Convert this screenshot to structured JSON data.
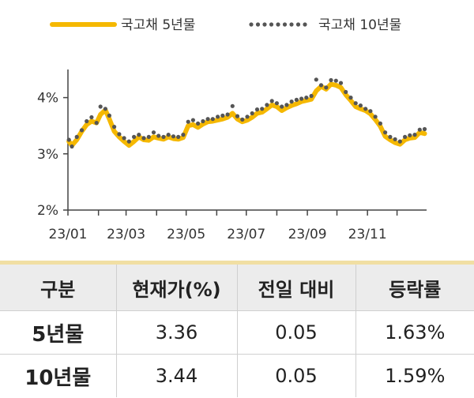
{
  "chart_data": {
    "type": "line",
    "x_tick_labels": [
      "23/01",
      "23/03",
      "23/05",
      "23/07",
      "23/09",
      "23/11"
    ],
    "y_tick_labels": [
      "2%",
      "3%",
      "4%"
    ],
    "ylim": [
      2,
      4.5
    ],
    "xlim": [
      "2023-01-01",
      "2023-12-31"
    ],
    "grid": false,
    "legend_position": "top",
    "series": [
      {
        "name": "국고채 5년물",
        "color": "#f5b800",
        "style": "solid",
        "x": [
          "2023-01-02",
          "2023-01-05",
          "2023-01-10",
          "2023-01-15",
          "2023-01-20",
          "2023-01-25",
          "2023-01-30",
          "2023-02-03",
          "2023-02-08",
          "2023-02-12",
          "2023-02-17",
          "2023-02-22",
          "2023-02-27",
          "2023-03-04",
          "2023-03-09",
          "2023-03-14",
          "2023-03-19",
          "2023-03-24",
          "2023-03-29",
          "2023-04-03",
          "2023-04-08",
          "2023-04-13",
          "2023-04-18",
          "2023-04-23",
          "2023-04-28",
          "2023-05-03",
          "2023-05-08",
          "2023-05-13",
          "2023-05-18",
          "2023-05-23",
          "2023-05-28",
          "2023-06-02",
          "2023-06-07",
          "2023-06-12",
          "2023-06-17",
          "2023-06-22",
          "2023-06-27",
          "2023-07-02",
          "2023-07-07",
          "2023-07-12",
          "2023-07-17",
          "2023-07-22",
          "2023-07-27",
          "2023-08-01",
          "2023-08-06",
          "2023-08-11",
          "2023-08-16",
          "2023-08-21",
          "2023-08-26",
          "2023-08-31",
          "2023-09-05",
          "2023-09-10",
          "2023-09-15",
          "2023-09-20",
          "2023-09-25",
          "2023-09-30",
          "2023-10-05",
          "2023-10-10",
          "2023-10-15",
          "2023-10-20",
          "2023-10-25",
          "2023-10-30",
          "2023-11-04",
          "2023-11-09",
          "2023-11-14",
          "2023-11-19",
          "2023-11-24",
          "2023-11-29",
          "2023-12-04",
          "2023-12-09",
          "2023-12-14",
          "2023-12-19",
          "2023-12-24",
          "2023-12-29"
        ],
        "values": [
          3.22,
          3.15,
          3.25,
          3.4,
          3.52,
          3.58,
          3.55,
          3.7,
          3.78,
          3.62,
          3.4,
          3.3,
          3.22,
          3.15,
          3.22,
          3.3,
          3.25,
          3.24,
          3.3,
          3.28,
          3.26,
          3.3,
          3.27,
          3.26,
          3.29,
          3.5,
          3.52,
          3.47,
          3.53,
          3.57,
          3.58,
          3.6,
          3.62,
          3.65,
          3.72,
          3.62,
          3.57,
          3.6,
          3.65,
          3.72,
          3.74,
          3.8,
          3.87,
          3.84,
          3.77,
          3.82,
          3.86,
          3.89,
          3.93,
          3.95,
          3.97,
          4.12,
          4.2,
          4.15,
          4.24,
          4.22,
          4.18,
          4.05,
          3.95,
          3.84,
          3.8,
          3.77,
          3.71,
          3.61,
          3.49,
          3.31,
          3.25,
          3.2,
          3.17,
          3.25,
          3.28,
          3.29,
          3.38,
          3.36
        ]
      },
      {
        "name": "국고채 10년물",
        "color": "#555555",
        "style": "dotted",
        "x": [
          "2023-01-02",
          "2023-01-05",
          "2023-01-10",
          "2023-01-15",
          "2023-01-20",
          "2023-01-25",
          "2023-01-30",
          "2023-02-03",
          "2023-02-08",
          "2023-02-12",
          "2023-02-17",
          "2023-02-22",
          "2023-02-27",
          "2023-03-04",
          "2023-03-09",
          "2023-03-14",
          "2023-03-19",
          "2023-03-24",
          "2023-03-29",
          "2023-04-03",
          "2023-04-08",
          "2023-04-13",
          "2023-04-18",
          "2023-04-23",
          "2023-04-28",
          "2023-05-03",
          "2023-05-08",
          "2023-05-13",
          "2023-05-18",
          "2023-05-23",
          "2023-05-28",
          "2023-06-02",
          "2023-06-07",
          "2023-06-12",
          "2023-06-17",
          "2023-06-22",
          "2023-06-27",
          "2023-07-02",
          "2023-07-07",
          "2023-07-12",
          "2023-07-17",
          "2023-07-22",
          "2023-07-27",
          "2023-08-01",
          "2023-08-06",
          "2023-08-11",
          "2023-08-16",
          "2023-08-21",
          "2023-08-26",
          "2023-08-31",
          "2023-09-05",
          "2023-09-10",
          "2023-09-15",
          "2023-09-20",
          "2023-09-25",
          "2023-09-30",
          "2023-10-05",
          "2023-10-10",
          "2023-10-15",
          "2023-10-20",
          "2023-10-25",
          "2023-10-30",
          "2023-11-04",
          "2023-11-09",
          "2023-11-14",
          "2023-11-19",
          "2023-11-24",
          "2023-11-29",
          "2023-12-04",
          "2023-12-09",
          "2023-12-14",
          "2023-12-19",
          "2023-12-24",
          "2023-12-29"
        ],
        "values": [
          3.25,
          3.13,
          3.3,
          3.42,
          3.58,
          3.65,
          3.55,
          3.84,
          3.8,
          3.68,
          3.48,
          3.35,
          3.28,
          3.22,
          3.3,
          3.34,
          3.28,
          3.3,
          3.38,
          3.32,
          3.3,
          3.34,
          3.31,
          3.3,
          3.34,
          3.57,
          3.6,
          3.54,
          3.58,
          3.62,
          3.62,
          3.66,
          3.68,
          3.7,
          3.85,
          3.67,
          3.61,
          3.66,
          3.72,
          3.79,
          3.8,
          3.87,
          3.94,
          3.9,
          3.84,
          3.87,
          3.93,
          3.96,
          3.98,
          4.0,
          4.03,
          4.32,
          4.22,
          4.18,
          4.31,
          4.3,
          4.26,
          4.1,
          4.0,
          3.9,
          3.86,
          3.8,
          3.76,
          3.66,
          3.54,
          3.38,
          3.3,
          3.26,
          3.22,
          3.3,
          3.33,
          3.34,
          3.43,
          3.44
        ]
      }
    ]
  },
  "table": {
    "headers": [
      "구분",
      "현재가(%)",
      "전일 대비",
      "등락률"
    ],
    "rows": [
      [
        "5년물",
        "3.36",
        "0.05",
        "1.63%"
      ],
      [
        "10년물",
        "3.44",
        "0.05",
        "1.59%"
      ]
    ]
  }
}
